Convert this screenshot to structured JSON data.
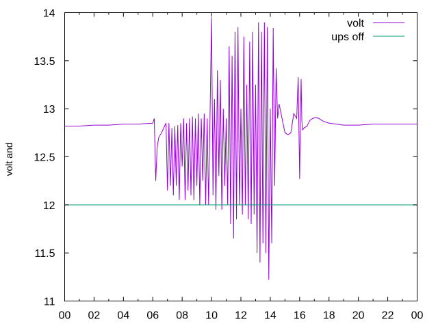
{
  "chart_data": {
    "type": "line",
    "title": "",
    "xlabel": "",
    "ylabel": "volt and",
    "x_tick_labels": [
      "00",
      "02",
      "04",
      "06",
      "08",
      "10",
      "12",
      "14",
      "16",
      "18",
      "20",
      "22",
      "00"
    ],
    "y_tick_labels": [
      "11",
      "11.5",
      "12",
      "12.5",
      "13",
      "13.5",
      "14"
    ],
    "xlim_hours": [
      0,
      24
    ],
    "ylim": [
      11,
      14
    ],
    "grid": false,
    "legend_position": "top-right",
    "series": [
      {
        "name": "volt",
        "color": "#9400d3",
        "x_hours": [
          0.0,
          1.0,
          2.0,
          3.0,
          4.0,
          5.0,
          6.0,
          6.1,
          6.2,
          6.3,
          6.4,
          6.6,
          6.8,
          6.9,
          7.0,
          7.1,
          7.2,
          7.3,
          7.4,
          7.5,
          7.6,
          7.7,
          7.8,
          7.9,
          8.0,
          8.1,
          8.2,
          8.3,
          8.4,
          8.5,
          8.6,
          8.7,
          8.8,
          8.9,
          9.0,
          9.1,
          9.2,
          9.3,
          9.4,
          9.5,
          9.6,
          9.7,
          9.8,
          9.9,
          10.0,
          10.1,
          10.2,
          10.3,
          10.4,
          10.5,
          10.6,
          10.7,
          10.8,
          10.9,
          11.0,
          11.1,
          11.2,
          11.3,
          11.4,
          11.5,
          11.6,
          11.7,
          11.8,
          11.9,
          12.0,
          12.1,
          12.2,
          12.3,
          12.4,
          12.5,
          12.6,
          12.7,
          12.8,
          12.9,
          13.0,
          13.1,
          13.2,
          13.3,
          13.4,
          13.5,
          13.6,
          13.7,
          13.8,
          13.9,
          14.0,
          14.1,
          14.2,
          14.3,
          14.4,
          14.5,
          14.6,
          14.8,
          15.0,
          15.2,
          15.4,
          15.6,
          15.8,
          15.9,
          16.0,
          16.05,
          16.1,
          16.15,
          16.2,
          16.3,
          16.5,
          16.7,
          16.9,
          17.1,
          17.3,
          17.6,
          18.0,
          18.5,
          19.0,
          20.0,
          21.0,
          22.0,
          23.0,
          24.0
        ],
        "values": [
          12.82,
          12.82,
          12.83,
          12.83,
          12.84,
          12.84,
          12.85,
          12.9,
          12.25,
          12.6,
          12.7,
          12.75,
          12.82,
          12.85,
          12.15,
          12.85,
          12.2,
          12.8,
          12.1,
          12.82,
          12.2,
          12.83,
          12.05,
          12.85,
          12.4,
          12.9,
          12.05,
          12.85,
          12.15,
          12.9,
          12.1,
          12.92,
          12.05,
          12.9,
          12.2,
          12.95,
          12.0,
          12.9,
          12.25,
          12.95,
          12.0,
          12.9,
          12.0,
          12.95,
          13.95,
          12.1,
          13.1,
          11.95,
          13.4,
          12.3,
          13.3,
          11.95,
          13.0,
          12.2,
          12.9,
          12.0,
          13.65,
          11.8,
          13.55,
          11.65,
          13.8,
          11.85,
          13.85,
          12.0,
          13.0,
          11.9,
          13.75,
          12.0,
          13.25,
          11.85,
          13.7,
          11.8,
          13.8,
          11.9,
          13.25,
          11.5,
          13.9,
          11.4,
          13.8,
          11.6,
          13.9,
          11.5,
          13.85,
          11.22,
          13.0,
          11.6,
          13.84,
          12.2,
          13.42,
          12.9,
          13.05,
          12.9,
          12.75,
          12.73,
          12.75,
          12.95,
          12.9,
          13.33,
          12.27,
          12.9,
          13.31,
          12.88,
          12.78,
          12.8,
          12.82,
          12.88,
          12.9,
          12.91,
          12.9,
          12.87,
          12.85,
          12.84,
          12.83,
          12.83,
          12.84,
          12.84,
          12.84,
          12.84
        ]
      },
      {
        "name": "ups off",
        "color": "#009e73",
        "x_hours": [
          0,
          24
        ],
        "values": [
          12,
          12
        ]
      }
    ]
  }
}
